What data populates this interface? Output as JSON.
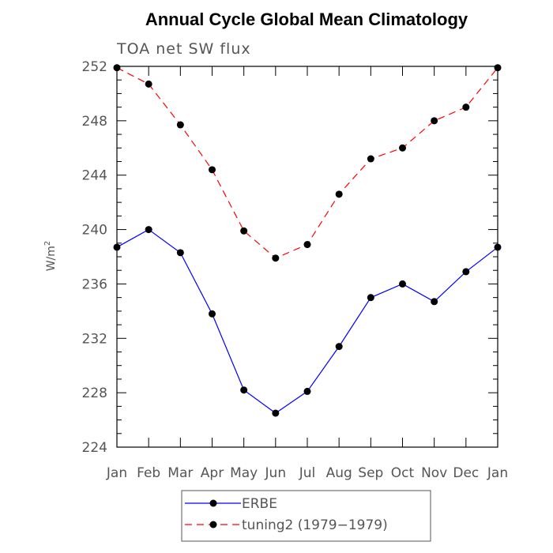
{
  "chart_data": {
    "type": "line",
    "title": "Annual Cycle Global Mean Climatology",
    "subtitle": "TOA net SW flux",
    "xlabel": "",
    "ylabel": "W/m",
    "ylabel_superscript": "2",
    "categories": [
      "Jan",
      "Feb",
      "Mar",
      "Apr",
      "May",
      "Jun",
      "Jul",
      "Aug",
      "Sep",
      "Oct",
      "Nov",
      "Dec",
      "Jan"
    ],
    "ylim": [
      224,
      252
    ],
    "yticks": [
      224,
      228,
      232,
      236,
      240,
      244,
      248,
      252
    ],
    "series": [
      {
        "name": "ERBE",
        "color": "#0000ff",
        "dash": "solid",
        "values": [
          238.7,
          240.0,
          238.3,
          233.8,
          228.2,
          226.5,
          228.1,
          231.4,
          235.0,
          236.0,
          234.7,
          236.9,
          238.7
        ]
      },
      {
        "name": "tuning2 (1979−1979)",
        "color": "#ff0000",
        "dash": "dashed",
        "values": [
          251.9,
          250.7,
          247.7,
          244.4,
          239.9,
          237.9,
          238.9,
          242.6,
          245.2,
          246.0,
          248.0,
          249.0,
          251.9
        ]
      }
    ]
  }
}
